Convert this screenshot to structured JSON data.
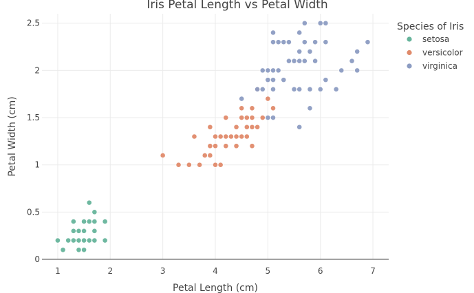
{
  "chart_data": {
    "type": "scatter",
    "title": "Iris Petal Length vs Petal Width",
    "xlabel": "Petal Length (cm)",
    "ylabel": "Petal Width (cm)",
    "xlim": [
      0.7,
      7.3
    ],
    "ylim": [
      0,
      2.6
    ],
    "xticks": [
      1,
      2,
      3,
      4,
      5,
      6,
      7
    ],
    "xtick_labels": [
      "1",
      "2",
      "3",
      "4",
      "5",
      "6",
      "7"
    ],
    "yticks": [
      0,
      0.5,
      1,
      1.5,
      2,
      2.5
    ],
    "ytick_labels": [
      "0",
      "0.5",
      "1",
      "1.5",
      "2",
      "2.5"
    ],
    "grid": true,
    "legend": {
      "title": "Species of Iris",
      "position": "right"
    },
    "series": [
      {
        "name": "setosa",
        "color": "#66b49b",
        "points": [
          [
            1.0,
            0.2
          ],
          [
            1.1,
            0.1
          ],
          [
            1.2,
            0.2
          ],
          [
            1.3,
            0.2
          ],
          [
            1.3,
            0.3
          ],
          [
            1.3,
            0.4
          ],
          [
            1.4,
            0.1
          ],
          [
            1.4,
            0.2
          ],
          [
            1.4,
            0.3
          ],
          [
            1.5,
            0.1
          ],
          [
            1.5,
            0.2
          ],
          [
            1.5,
            0.3
          ],
          [
            1.5,
            0.4
          ],
          [
            1.6,
            0.2
          ],
          [
            1.6,
            0.4
          ],
          [
            1.6,
            0.6
          ],
          [
            1.7,
            0.2
          ],
          [
            1.7,
            0.3
          ],
          [
            1.7,
            0.4
          ],
          [
            1.7,
            0.5
          ],
          [
            1.9,
            0.2
          ],
          [
            1.9,
            0.4
          ]
        ]
      },
      {
        "name": "versicolor",
        "color": "#e08a6a",
        "points": [
          [
            3.0,
            1.1
          ],
          [
            3.3,
            1.0
          ],
          [
            3.5,
            1.0
          ],
          [
            3.6,
            1.3
          ],
          [
            3.7,
            1.0
          ],
          [
            3.8,
            1.1
          ],
          [
            3.9,
            1.1
          ],
          [
            3.9,
            1.2
          ],
          [
            3.9,
            1.4
          ],
          [
            4.0,
            1.0
          ],
          [
            4.0,
            1.2
          ],
          [
            4.0,
            1.3
          ],
          [
            4.1,
            1.0
          ],
          [
            4.1,
            1.3
          ],
          [
            4.2,
            1.2
          ],
          [
            4.2,
            1.3
          ],
          [
            4.2,
            1.5
          ],
          [
            4.3,
            1.3
          ],
          [
            4.4,
            1.2
          ],
          [
            4.4,
            1.3
          ],
          [
            4.4,
            1.4
          ],
          [
            4.5,
            1.3
          ],
          [
            4.5,
            1.5
          ],
          [
            4.5,
            1.6
          ],
          [
            4.6,
            1.3
          ],
          [
            4.6,
            1.4
          ],
          [
            4.6,
            1.5
          ],
          [
            4.7,
            1.2
          ],
          [
            4.7,
            1.4
          ],
          [
            4.7,
            1.5
          ],
          [
            4.7,
            1.6
          ],
          [
            4.8,
            1.4
          ],
          [
            4.8,
            1.8
          ],
          [
            4.9,
            1.5
          ],
          [
            5.0,
            1.7
          ],
          [
            5.1,
            1.6
          ]
        ]
      },
      {
        "name": "virginica",
        "color": "#8c9cc2",
        "points": [
          [
            4.5,
            1.7
          ],
          [
            4.8,
            1.8
          ],
          [
            4.9,
            1.8
          ],
          [
            4.9,
            2.0
          ],
          [
            5.0,
            1.5
          ],
          [
            5.0,
            1.9
          ],
          [
            5.0,
            2.0
          ],
          [
            5.1,
            1.5
          ],
          [
            5.1,
            1.8
          ],
          [
            5.1,
            1.9
          ],
          [
            5.1,
            2.0
          ],
          [
            5.1,
            2.3
          ],
          [
            5.1,
            2.4
          ],
          [
            5.2,
            2.0
          ],
          [
            5.2,
            2.3
          ],
          [
            5.3,
            1.9
          ],
          [
            5.3,
            2.3
          ],
          [
            5.4,
            2.1
          ],
          [
            5.4,
            2.3
          ],
          [
            5.5,
            1.8
          ],
          [
            5.5,
            2.1
          ],
          [
            5.6,
            1.4
          ],
          [
            5.6,
            1.8
          ],
          [
            5.6,
            2.1
          ],
          [
            5.6,
            2.2
          ],
          [
            5.6,
            2.4
          ],
          [
            5.7,
            2.1
          ],
          [
            5.7,
            2.3
          ],
          [
            5.7,
            2.5
          ],
          [
            5.8,
            1.6
          ],
          [
            5.8,
            1.8
          ],
          [
            5.8,
            2.2
          ],
          [
            5.9,
            2.1
          ],
          [
            5.9,
            2.3
          ],
          [
            6.0,
            1.8
          ],
          [
            6.0,
            2.5
          ],
          [
            6.1,
            1.9
          ],
          [
            6.1,
            2.3
          ],
          [
            6.1,
            2.5
          ],
          [
            6.3,
            1.8
          ],
          [
            6.4,
            2.0
          ],
          [
            6.6,
            2.1
          ],
          [
            6.7,
            2.0
          ],
          [
            6.7,
            2.2
          ],
          [
            6.9,
            2.3
          ]
        ]
      }
    ]
  }
}
